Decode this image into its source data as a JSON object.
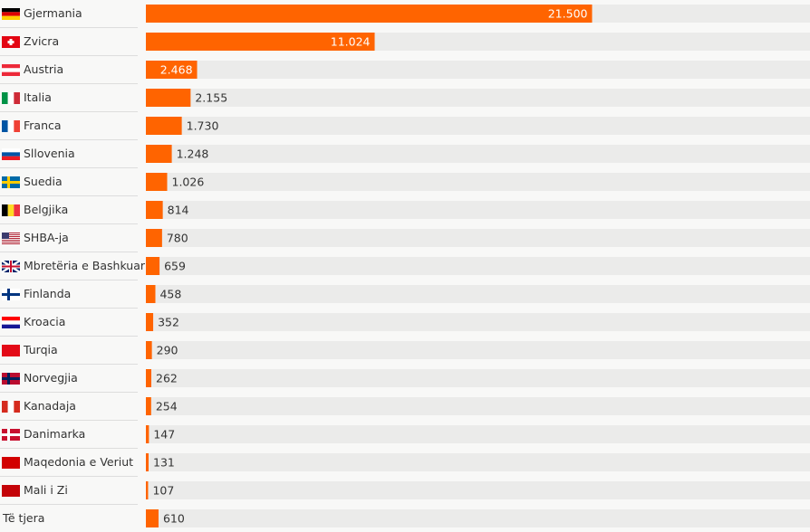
{
  "chart_data": {
    "type": "hbar",
    "categories": [
      "Gjermania",
      "Zvicra",
      "Austria",
      "Italia",
      "Franca",
      "Sllovenia",
      "Suedia",
      "Belgjika",
      "SHBA-ja",
      "Mbretëria e Bashkuar",
      "Finlanda",
      "Kroacia",
      "Turqia",
      "Norvegjia",
      "Kanadaja",
      "Danimarka",
      "Maqedonia e Veriut",
      "Mali i Zi",
      "Të tjera"
    ],
    "values": [
      21500,
      11024,
      2468,
      2155,
      1730,
      1248,
      1026,
      814,
      780,
      659,
      458,
      352,
      290,
      262,
      254,
      147,
      131,
      107,
      610
    ],
    "value_labels": [
      "21.500",
      "11.024",
      "2.468",
      "2.155",
      "1.730",
      "1.248",
      "1.026",
      "814",
      "780",
      "659",
      "458",
      "352",
      "290",
      "262",
      "254",
      "147",
      "131",
      "107",
      "610"
    ],
    "color": "#ff6400",
    "track_color": "#ebebea",
    "xlim": [
      0,
      32000
    ]
  }
}
